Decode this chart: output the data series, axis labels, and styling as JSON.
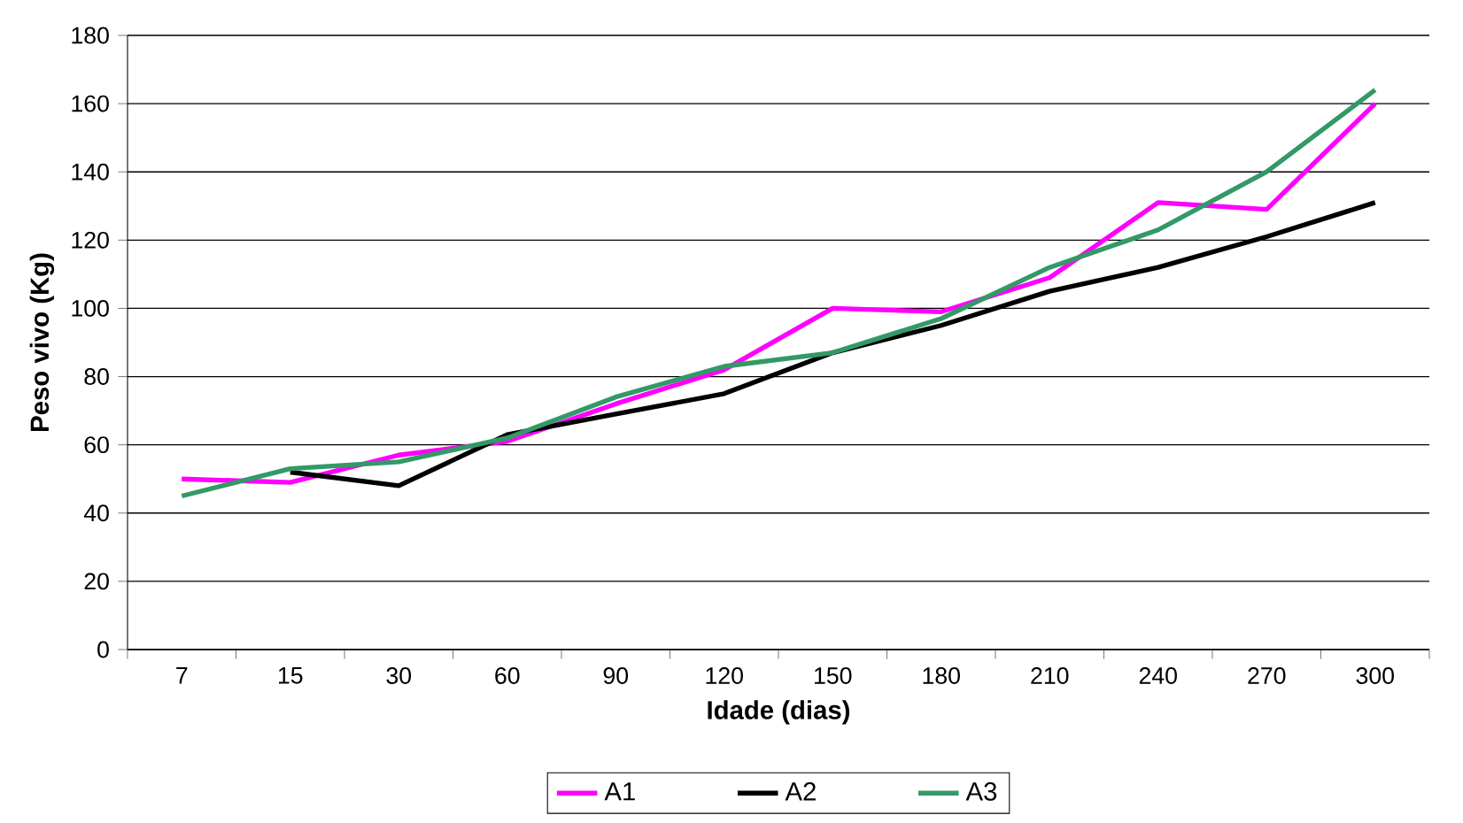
{
  "chart_data": {
    "type": "line",
    "xlabel": "Idade (dias)",
    "ylabel": "Peso vivo (Kg)",
    "categories": [
      "7",
      "15",
      "30",
      "60",
      "90",
      "120",
      "150",
      "180",
      "210",
      "240",
      "270",
      "300"
    ],
    "series": [
      {
        "name": "A1",
        "color": "#ff00ff",
        "values": [
          50,
          49,
          57,
          61,
          72,
          82,
          100,
          99,
          109,
          131,
          129,
          160
        ]
      },
      {
        "name": "A2",
        "color": "#000000",
        "values": [
          null,
          52,
          48,
          63,
          69,
          75,
          87,
          95,
          105,
          112,
          121,
          131
        ]
      },
      {
        "name": "A3",
        "color": "#339966",
        "values": [
          45,
          53,
          55,
          62,
          74,
          83,
          87,
          97,
          112,
          123,
          140,
          164
        ]
      }
    ],
    "ylim": [
      0,
      180
    ],
    "yticks": [
      0,
      20,
      40,
      60,
      80,
      100,
      120,
      140,
      160,
      180
    ],
    "grid": "y",
    "legend": "bottom",
    "marker": "none",
    "line_style": "solid"
  }
}
